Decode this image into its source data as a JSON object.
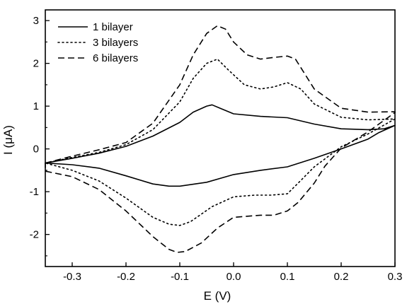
{
  "chart_data": {
    "type": "line",
    "title": "",
    "xlabel": "E (V)",
    "ylabel": "I (μA)",
    "xlim": [
      -0.35,
      0.3
    ],
    "ylim": [
      -2.75,
      3.25
    ],
    "x_ticks": [
      -0.3,
      -0.2,
      -0.1,
      0.0,
      0.1,
      0.2,
      0.3
    ],
    "x_tick_labels": [
      "-0.3",
      "-0.2",
      "-0.1",
      "0.0",
      "0.1",
      "0.2",
      "0.3"
    ],
    "y_ticks": [
      -2,
      -1,
      0,
      1,
      2,
      3
    ],
    "y_tick_labels": [
      "-2",
      "-1",
      "0",
      "1",
      "2",
      "3"
    ],
    "grid": false,
    "legend_position": "top-left",
    "series": [
      {
        "name": "1 bilayer",
        "line_style": "solid",
        "color": "#000000",
        "upper": {
          "x": [
            -0.35,
            -0.3,
            -0.25,
            -0.2,
            -0.15,
            -0.1,
            -0.075,
            -0.05,
            -0.04,
            -0.025,
            0.0,
            0.05,
            0.1,
            0.15,
            0.2,
            0.25,
            0.28,
            0.3
          ],
          "y": [
            -0.33,
            -0.22,
            -0.1,
            0.06,
            0.3,
            0.62,
            0.86,
            1.0,
            1.03,
            0.95,
            0.82,
            0.76,
            0.73,
            0.58,
            0.47,
            0.45,
            0.47,
            0.55
          ]
        },
        "lower": {
          "x": [
            0.3,
            0.27,
            0.25,
            0.2,
            0.15,
            0.1,
            0.05,
            0.0,
            -0.05,
            -0.1,
            -0.12,
            -0.15,
            -0.2,
            -0.25,
            -0.3,
            -0.35
          ],
          "y": [
            0.55,
            0.38,
            0.23,
            0.0,
            -0.22,
            -0.42,
            -0.5,
            -0.6,
            -0.78,
            -0.87,
            -0.87,
            -0.82,
            -0.63,
            -0.45,
            -0.37,
            -0.33
          ]
        }
      },
      {
        "name": "3 bilayers",
        "line_style": "dotted",
        "color": "#000000",
        "upper": {
          "x": [
            -0.35,
            -0.3,
            -0.25,
            -0.2,
            -0.15,
            -0.1,
            -0.075,
            -0.05,
            -0.03,
            -0.01,
            0.02,
            0.05,
            0.075,
            0.1,
            0.125,
            0.15,
            0.2,
            0.25,
            0.3
          ],
          "y": [
            -0.33,
            -0.2,
            -0.08,
            0.1,
            0.45,
            1.1,
            1.65,
            2.0,
            2.1,
            1.85,
            1.5,
            1.4,
            1.45,
            1.55,
            1.4,
            1.05,
            0.74,
            0.68,
            0.7
          ]
        },
        "lower": {
          "x": [
            0.3,
            0.25,
            0.2,
            0.15,
            0.12,
            0.1,
            0.07,
            0.04,
            0.0,
            -0.04,
            -0.08,
            -0.1,
            -0.12,
            -0.15,
            -0.2,
            -0.25,
            -0.3,
            -0.35
          ],
          "y": [
            0.7,
            0.35,
            0.05,
            -0.42,
            -0.8,
            -1.05,
            -1.08,
            -1.08,
            -1.12,
            -1.35,
            -1.7,
            -1.79,
            -1.76,
            -1.6,
            -1.15,
            -0.75,
            -0.5,
            -0.33
          ]
        }
      },
      {
        "name": "6 bilayers",
        "line_style": "dashed",
        "color": "#000000",
        "upper": {
          "x": [
            -0.35,
            -0.3,
            -0.25,
            -0.2,
            -0.15,
            -0.1,
            -0.075,
            -0.05,
            -0.03,
            -0.015,
            0.0,
            0.025,
            0.05,
            0.075,
            0.1,
            0.115,
            0.13,
            0.15,
            0.2,
            0.25,
            0.3
          ],
          "y": [
            -0.33,
            -0.17,
            -0.02,
            0.15,
            0.6,
            1.5,
            2.2,
            2.7,
            2.88,
            2.8,
            2.5,
            2.2,
            2.1,
            2.14,
            2.17,
            2.1,
            1.8,
            1.4,
            0.95,
            0.86,
            0.87
          ]
        },
        "lower": {
          "x": [
            0.3,
            0.25,
            0.2,
            0.17,
            0.15,
            0.12,
            0.1,
            0.075,
            0.05,
            0.0,
            -0.03,
            -0.06,
            -0.09,
            -0.105,
            -0.12,
            -0.15,
            -0.2,
            -0.25,
            -0.3,
            -0.35
          ],
          "y": [
            0.85,
            0.4,
            0.02,
            -0.4,
            -0.8,
            -1.25,
            -1.45,
            -1.55,
            -1.55,
            -1.6,
            -1.85,
            -2.2,
            -2.4,
            -2.42,
            -2.35,
            -2.05,
            -1.45,
            -0.95,
            -0.65,
            -0.52
          ]
        }
      }
    ]
  }
}
